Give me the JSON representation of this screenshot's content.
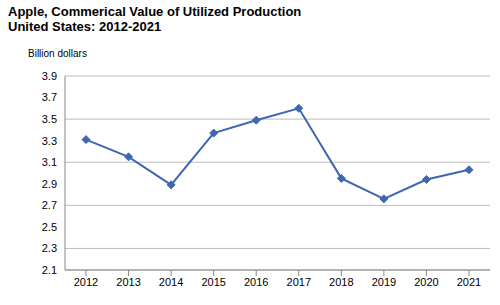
{
  "chart_data": {
    "type": "line",
    "title": "Apple, Commerical Value of Utilized Production",
    "subtitle": "United States: 2012-2021",
    "y_label": "Billion dollars",
    "categories": [
      "2012",
      "2013",
      "2014",
      "2015",
      "2016",
      "2017",
      "2018",
      "2019",
      "2020",
      "2021"
    ],
    "values": [
      3.31,
      3.15,
      2.89,
      3.37,
      3.49,
      3.6,
      2.95,
      2.76,
      2.94,
      3.03
    ],
    "color": "#3f67b1",
    "marker": "diamond",
    "ylim": [
      2.1,
      3.9
    ],
    "yticks": [
      2.1,
      2.3,
      2.5,
      2.7,
      2.9,
      3.1,
      3.3,
      3.5,
      3.7,
      3.9
    ],
    "grid": true
  }
}
